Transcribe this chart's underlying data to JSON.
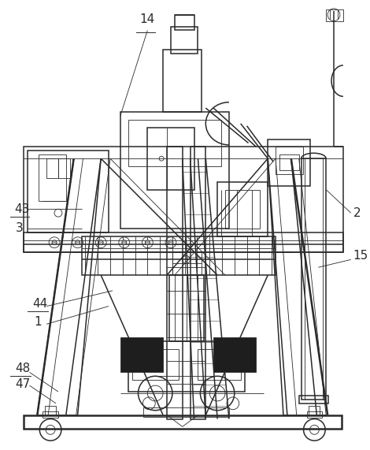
{
  "bg_color": "#ffffff",
  "line_color": "#2a2a2a",
  "lw_thick": 1.8,
  "lw_main": 1.1,
  "lw_thin": 0.6,
  "label_fontsize": 11,
  "figsize": [
    4.7,
    5.71
  ],
  "dpi": 100
}
